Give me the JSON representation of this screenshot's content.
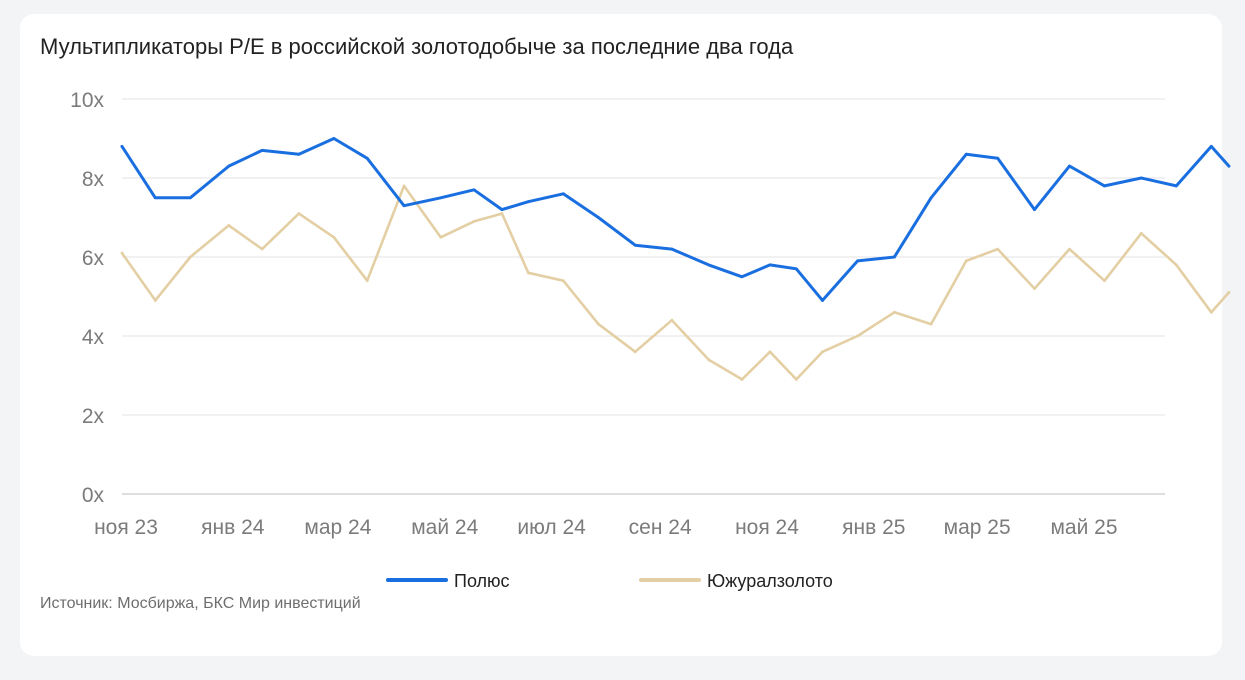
{
  "title": "Мультипликаторы P/E в российской золотодобыче за последние два года",
  "source": "Источник: Мосбиржа, БКС Мир инвестиций",
  "chart_data": {
    "type": "line",
    "title": "Мультипликаторы P/E в российской золотодобыче за последние два года",
    "xlabel": "",
    "ylabel": "",
    "ylim": [
      0,
      10
    ],
    "y_ticks": [
      "0x",
      "2x",
      "4x",
      "6x",
      "8x",
      "10x"
    ],
    "x_ticks": [
      "ноя 23",
      "янв 24",
      "мар 24",
      "май 24",
      "июл 24",
      "сен 24",
      "ноя 24",
      "янв 25",
      "мар 25",
      "май 25"
    ],
    "grid": "horizontal",
    "legend_position": "bottom",
    "x": [
      "2023-11-01",
      "2023-11-20",
      "2023-12-10",
      "2024-01-01",
      "2024-01-20",
      "2024-02-10",
      "2024-03-01",
      "2024-03-20",
      "2024-04-10",
      "2024-05-01",
      "2024-05-20",
      "2024-06-05",
      "2024-06-20",
      "2024-07-10",
      "2024-07-30",
      "2024-08-20",
      "2024-09-10",
      "2024-10-01",
      "2024-10-20",
      "2024-11-05",
      "2024-11-20",
      "2024-12-05",
      "2024-12-25",
      "2025-01-15",
      "2025-02-05",
      "2025-02-25",
      "2025-03-15",
      "2025-04-05",
      "2025-04-25",
      "2025-05-15",
      "2025-06-05",
      "2025-06-25",
      "2025-07-15",
      "2025-07-25"
    ],
    "series": [
      {
        "name": "Полюс",
        "color": "#1a6fe0",
        "values": [
          8.8,
          7.5,
          7.5,
          8.3,
          8.7,
          8.6,
          9.0,
          8.5,
          7.3,
          7.5,
          7.7,
          7.2,
          7.4,
          7.6,
          7.0,
          6.3,
          6.2,
          5.8,
          5.5,
          5.8,
          5.7,
          4.9,
          5.9,
          6.0,
          7.5,
          8.6,
          8.5,
          7.2,
          8.3,
          7.8,
          8.0,
          7.8,
          8.8,
          8.3
        ]
      },
      {
        "name": "Южуралзолото",
        "color": "#e3cfa3",
        "values": [
          6.1,
          4.9,
          6.0,
          6.8,
          6.2,
          7.1,
          6.5,
          5.4,
          7.8,
          6.5,
          6.9,
          7.1,
          5.6,
          5.4,
          4.3,
          3.6,
          4.4,
          3.4,
          2.9,
          3.6,
          2.9,
          3.6,
          4.0,
          4.6,
          4.3,
          5.9,
          6.2,
          5.2,
          6.2,
          5.4,
          6.6,
          5.8,
          4.6,
          5.1
        ]
      }
    ]
  }
}
